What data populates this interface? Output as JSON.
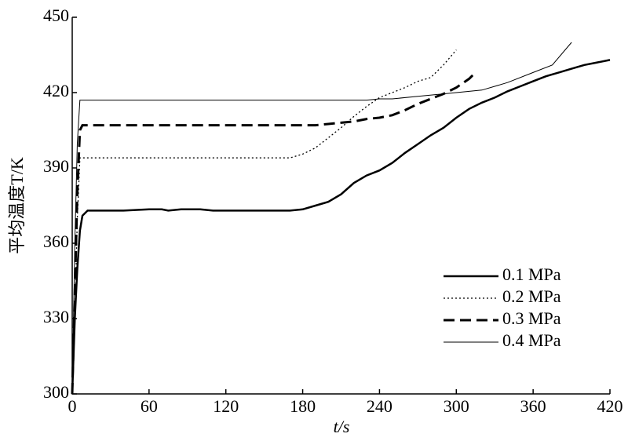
{
  "chart_data": {
    "type": "line",
    "xlabel": "t/s",
    "ylabel": "平均温度T/K",
    "xlim": [
      0,
      420
    ],
    "xticks": [
      0,
      60,
      120,
      180,
      240,
      300,
      360,
      420
    ],
    "ylim": [
      300,
      450
    ],
    "yticks": [
      300,
      330,
      360,
      390,
      420,
      450
    ],
    "legend": "lower right",
    "series": [
      {
        "name": "0.1 MPa",
        "color": "#000000",
        "width": 2.5,
        "dash": "none",
        "x": [
          0,
          2,
          4,
          6,
          8,
          12,
          40,
          60,
          70,
          75,
          85,
          100,
          110,
          170,
          180,
          190,
          200,
          210,
          220,
          230,
          240,
          250,
          260,
          270,
          280,
          290,
          300,
          310,
          320,
          330,
          340,
          350,
          360,
          370,
          380,
          390,
          400,
          410,
          420
        ],
        "values": [
          300,
          330,
          350,
          365,
          371,
          373,
          373,
          373.5,
          373.5,
          373,
          373.5,
          373.5,
          373,
          373,
          373.5,
          375,
          376.5,
          379.5,
          384,
          387,
          389,
          392,
          396,
          399.5,
          403,
          406,
          410,
          413.5,
          416,
          418,
          420.5,
          422.5,
          424.5,
          426.5,
          428,
          429.5,
          431,
          432,
          433
        ]
      },
      {
        "name": "0.2 MPa",
        "color": "#000000",
        "width": 1.3,
        "dash": "2,3",
        "x": [
          0,
          2,
          4,
          6,
          10,
          170,
          180,
          190,
          200,
          210,
          220,
          230,
          240,
          250,
          260,
          270,
          280,
          290,
          300
        ],
        "values": [
          300,
          330,
          370,
          394,
          394,
          394,
          395.5,
          398,
          402,
          406,
          410.5,
          414.5,
          418,
          420,
          422,
          424.5,
          426,
          431,
          437
        ]
      },
      {
        "name": "0.3 MPa",
        "color": "#000000",
        "width": 3,
        "dash": "14,7",
        "x": [
          0,
          2,
          4,
          6,
          8,
          190,
          200,
          210,
          220,
          230,
          240,
          250,
          260,
          270,
          280,
          290,
          300,
          310,
          315
        ],
        "values": [
          300,
          340,
          380,
          405,
          407,
          407,
          407.5,
          408,
          408.5,
          409.5,
          410,
          411,
          413,
          415.5,
          417.5,
          419.5,
          422,
          425.5,
          428
        ]
      },
      {
        "name": "0.4 MPa",
        "color": "#000000",
        "width": 1,
        "dash": "none",
        "x": [
          0,
          2,
          4,
          6,
          20,
          230,
          240,
          250,
          270,
          290,
          300,
          320,
          340,
          360,
          375,
          390
        ],
        "values": [
          300,
          360,
          400,
          417,
          417,
          417,
          417.5,
          417.5,
          418.5,
          419.5,
          420,
          421,
          424,
          428,
          431,
          440
        ]
      }
    ]
  }
}
